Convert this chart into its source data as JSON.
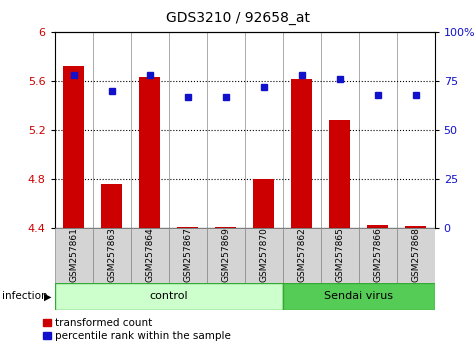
{
  "title": "GDS3210 / 92658_at",
  "samples": [
    "GSM257861",
    "GSM257863",
    "GSM257864",
    "GSM257867",
    "GSM257869",
    "GSM257870",
    "GSM257862",
    "GSM257865",
    "GSM257866",
    "GSM257868"
  ],
  "transformed_counts": [
    5.72,
    4.76,
    5.63,
    4.41,
    4.41,
    4.8,
    5.62,
    5.28,
    4.43,
    4.42
  ],
  "percentile_ranks": [
    78,
    70,
    78,
    67,
    67,
    72,
    78,
    76,
    68,
    68
  ],
  "n_control": 6,
  "ylim_left": [
    4.4,
    6.0
  ],
  "ylim_right": [
    0,
    100
  ],
  "yticks_left": [
    4.4,
    4.8,
    5.2,
    5.6,
    6.0
  ],
  "ytick_labels_left": [
    "4.4",
    "4.8",
    "5.2",
    "5.6",
    "6"
  ],
  "yticks_right": [
    0,
    25,
    50,
    75,
    100
  ],
  "ytick_labels_right": [
    "0",
    "25",
    "50",
    "75",
    "100%"
  ],
  "grid_values": [
    4.8,
    5.2,
    5.6
  ],
  "bar_color": "#cc0000",
  "dot_color": "#1111cc",
  "control_color": "#ccffcc",
  "sendai_color": "#55cc55",
  "sample_box_color": "#d4d4d4",
  "legend_items": [
    "transformed count",
    "percentile rank within the sample"
  ],
  "group_label": "infection"
}
